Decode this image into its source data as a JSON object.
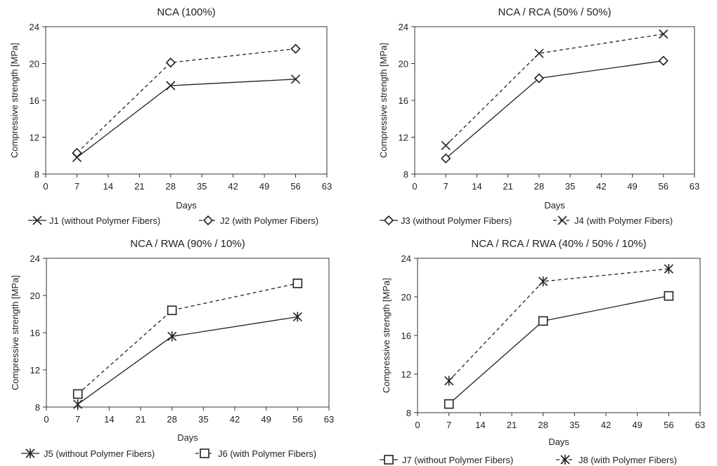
{
  "chart_data": [
    {
      "type": "line",
      "title": "NCA (100%)",
      "xlabel": "Days",
      "ylabel": "Compressive strength [MPa]",
      "xlim": [
        0,
        63
      ],
      "ylim": [
        8,
        24
      ],
      "xticks": [
        0,
        7,
        14,
        21,
        28,
        35,
        42,
        49,
        56,
        63
      ],
      "yticks": [
        8,
        12,
        16,
        20,
        24
      ],
      "grid": false,
      "legend_position": "bottom",
      "series": [
        {
          "name": "J1  (without Polymer Fibers)",
          "x": [
            7,
            28,
            56
          ],
          "y": [
            9.8,
            17.6,
            18.3
          ],
          "marker": "x",
          "dash": "solid"
        },
        {
          "name": "J2 (with Polymer Fibers)",
          "x": [
            7,
            28,
            56
          ],
          "y": [
            10.3,
            20.1,
            21.6
          ],
          "marker": "diamond",
          "dash": "dashed"
        }
      ]
    },
    {
      "type": "line",
      "title": "NCA / RCA (50% / 50%)",
      "xlabel": "Days",
      "ylabel": "Compressive strength [MPa]",
      "xlim": [
        0,
        63
      ],
      "ylim": [
        8,
        24
      ],
      "xticks": [
        0,
        7,
        14,
        21,
        28,
        35,
        42,
        49,
        56,
        63
      ],
      "yticks": [
        8,
        12,
        16,
        20,
        24
      ],
      "grid": false,
      "legend_position": "bottom",
      "series": [
        {
          "name": "J3 (without Polymer Fibers)",
          "x": [
            7,
            28,
            56
          ],
          "y": [
            9.7,
            18.4,
            20.3
          ],
          "marker": "diamond",
          "dash": "solid"
        },
        {
          "name": "J4 (with Polymer Fibers)",
          "x": [
            7,
            28,
            56
          ],
          "y": [
            11.1,
            21.1,
            23.2
          ],
          "marker": "x",
          "dash": "dashed"
        }
      ]
    },
    {
      "type": "line",
      "title": "NCA / RWA (90% / 10%)",
      "xlabel": "Days",
      "ylabel": "Compressive strength [MPa]",
      "xlim": [
        0,
        63
      ],
      "ylim": [
        8,
        24
      ],
      "xticks": [
        0,
        7,
        14,
        21,
        28,
        35,
        42,
        49,
        56,
        63
      ],
      "yticks": [
        8,
        12,
        16,
        20,
        24
      ],
      "grid": false,
      "legend_position": "bottom",
      "series": [
        {
          "name": "J5  (without Polymer Fibers)",
          "x": [
            7,
            28,
            56
          ],
          "y": [
            8.3,
            15.6,
            17.7
          ],
          "marker": "asterisk",
          "dash": "solid"
        },
        {
          "name": "J6 (with Polymer Fibers)",
          "x": [
            7,
            28,
            56
          ],
          "y": [
            9.4,
            18.4,
            21.3
          ],
          "marker": "square",
          "dash": "dashed"
        }
      ]
    },
    {
      "type": "line",
      "title": "NCA / RCA / RWA (40% / 50% / 10%)",
      "xlabel": "Days",
      "ylabel": "Compressive strength [MPa]",
      "xlim": [
        0,
        63
      ],
      "ylim": [
        8,
        24
      ],
      "xticks": [
        0,
        7,
        14,
        21,
        28,
        35,
        42,
        49,
        56,
        63
      ],
      "yticks": [
        8,
        12,
        16,
        20,
        24
      ],
      "grid": false,
      "legend_position": "bottom",
      "series": [
        {
          "name": "J7  (without Polymer Fibers)",
          "x": [
            7,
            28,
            56
          ],
          "y": [
            8.9,
            17.5,
            20.1
          ],
          "marker": "square",
          "dash": "solid"
        },
        {
          "name": "J8 (with Polymer Fibers)",
          "x": [
            7,
            28,
            56
          ],
          "y": [
            11.3,
            21.6,
            22.9
          ],
          "marker": "asterisk",
          "dash": "dashed"
        }
      ]
    }
  ]
}
